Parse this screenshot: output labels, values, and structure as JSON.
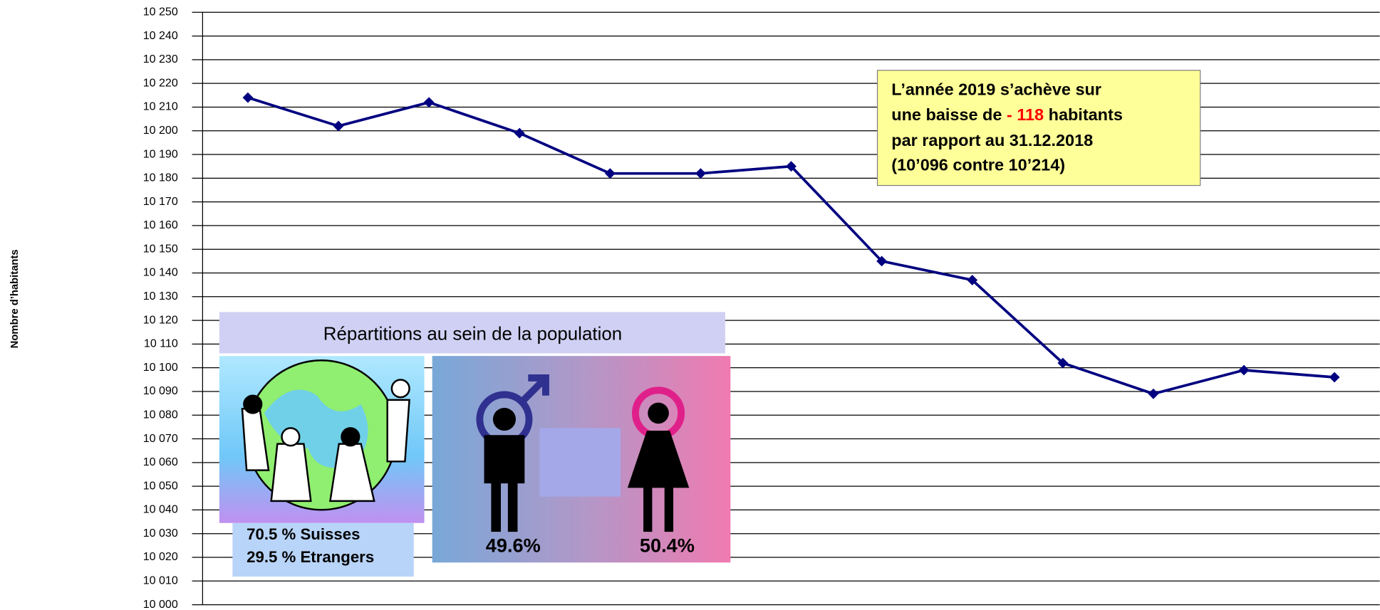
{
  "chart_data": {
    "type": "line",
    "y_label": "Nombre d’habitants",
    "categories": [
      null,
      null,
      null,
      null,
      null,
      null,
      null,
      null,
      null,
      null,
      null,
      null,
      null
    ],
    "series": [
      {
        "name": null,
        "color": "#000080",
        "values": [
          10214,
          10202,
          10212,
          10199,
          10182,
          10182,
          10185,
          10145,
          10137,
          10102,
          10089,
          10099,
          10096
        ]
      }
    ],
    "ylim": [
      10000,
      10250
    ],
    "yticks": [
      {
        "value": 10000,
        "label": "10 000"
      },
      {
        "value": 10010,
        "label": "10 010"
      },
      {
        "value": 10020,
        "label": "10 020"
      },
      {
        "value": 10030,
        "label": "10 030"
      },
      {
        "value": 10040,
        "label": "10 040"
      },
      {
        "value": 10050,
        "label": "10 050"
      },
      {
        "value": 10060,
        "label": "10 060"
      },
      {
        "value": 10070,
        "label": "10 070"
      },
      {
        "value": 10080,
        "label": "10 080"
      },
      {
        "value": 10090,
        "label": "10 090"
      },
      {
        "value": 10100,
        "label": "10 100"
      },
      {
        "value": 10110,
        "label": "10 110"
      },
      {
        "value": 10120,
        "label": "10 120"
      },
      {
        "value": 10130,
        "label": "10 130"
      },
      {
        "value": 10140,
        "label": "10 140"
      },
      {
        "value": 10150,
        "label": "10 150"
      },
      {
        "value": 10160,
        "label": "10 160"
      },
      {
        "value": 10170,
        "label": "10 170"
      },
      {
        "value": 10180,
        "label": "10 180"
      },
      {
        "value": 10190,
        "label": "10 190"
      },
      {
        "value": 10200,
        "label": "10 200"
      },
      {
        "value": 10210,
        "label": "10 210"
      },
      {
        "value": 10220,
        "label": "10 220"
      },
      {
        "value": 10230,
        "label": "10 230"
      },
      {
        "value": 10240,
        "label": "10 240"
      },
      {
        "value": 10250,
        "label": "10 250"
      }
    ],
    "grid": true,
    "annotation": {
      "line1": "L’année 2019 s’achève sur",
      "line2_start": "une baisse de ",
      "line2_highlight": "- 118",
      "line2_end": " habitants",
      "line3": "par rapport au 31.12.2018",
      "line4": "(10’096 contre 10’214)"
    },
    "inset": {
      "title": "Répartitions au sein de la population",
      "swiss": "70.5 % Suisses",
      "foreign": "29.5 % Etrangers",
      "men": "49.6%",
      "women": "50.4%"
    }
  }
}
